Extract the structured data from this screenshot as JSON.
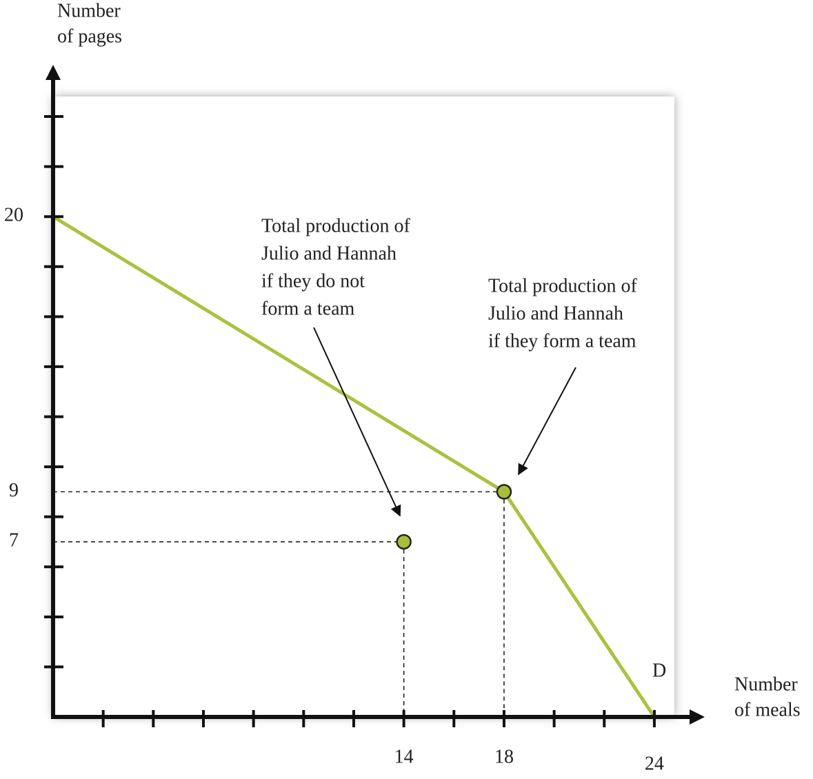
{
  "chart_data": {
    "type": "line",
    "y_label": [
      "Number",
      "of pages"
    ],
    "x_label": [
      "Number",
      "of meals"
    ],
    "xlim": [
      0,
      24.8
    ],
    "ylim": [
      0,
      24.8
    ],
    "xticks": [
      14,
      18,
      24
    ],
    "yticks": [
      7,
      9,
      20
    ],
    "x_minor_ticks": [
      2,
      4,
      6,
      8,
      10,
      12,
      14,
      16,
      18,
      20,
      22,
      24
    ],
    "y_minor_ticks": [
      2,
      4,
      6,
      8,
      10,
      12,
      14,
      16,
      18,
      20,
      22,
      24
    ],
    "series": [
      {
        "color": "#a9c23f",
        "x": [
          0,
          18,
          24
        ],
        "values": [
          20,
          9,
          0
        ]
      }
    ],
    "points": {
      "color": "#a9bd3c",
      "x": [
        14,
        18
      ],
      "values": [
        7,
        9
      ]
    },
    "annotations": [
      {
        "lines": [
          "Total production of",
          "Julio and Hannah",
          "if they do not",
          "form a team"
        ]
      },
      {
        "lines": [
          "Total production of",
          "Julio and Hannah",
          "if they form a team"
        ]
      },
      {
        "lines": [
          "D"
        ]
      }
    ]
  }
}
